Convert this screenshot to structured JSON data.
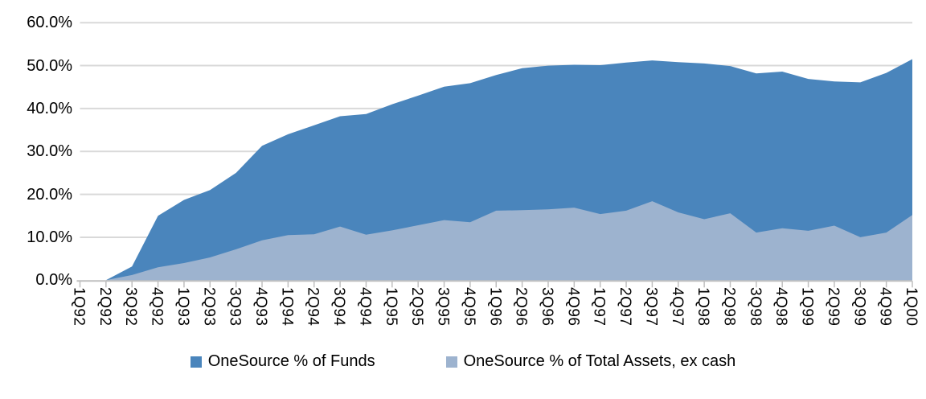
{
  "chart_data": {
    "type": "area",
    "title": "",
    "xlabel": "",
    "ylabel": "",
    "ylim": [
      0,
      60
    ],
    "grid": true,
    "legend_position": "bottom",
    "ytick_labels": [
      "0.0%",
      "10.0%",
      "20.0%",
      "30.0%",
      "40.0%",
      "50.0%",
      "60.0%"
    ],
    "categories": [
      "1Q92",
      "2Q92",
      "3Q92",
      "4Q92",
      "1Q93",
      "2Q93",
      "3Q93",
      "4Q93",
      "1Q94",
      "2Q94",
      "3Q94",
      "4Q94",
      "1Q95",
      "2Q95",
      "3Q95",
      "4Q95",
      "1Q96",
      "2Q96",
      "3Q96",
      "4Q96",
      "1Q97",
      "2Q97",
      "3Q97",
      "4Q97",
      "1Q98",
      "2Q98",
      "3Q98",
      "4Q98",
      "1Q99",
      "2Q99",
      "3Q99",
      "4Q99",
      "1Q00"
    ],
    "series": [
      {
        "name": "OneSource % of Funds",
        "color": "#4a85bc",
        "values": [
          0,
          0,
          3.2,
          15.0,
          18.7,
          21.0,
          25.0,
          31.3,
          34.0,
          36.1,
          38.2,
          38.7,
          41.0,
          43.0,
          45.1,
          45.9,
          47.8,
          49.4,
          50.0,
          50.2,
          50.1,
          50.7,
          51.2,
          50.8,
          50.5,
          49.9,
          48.2,
          48.6,
          46.9,
          46.3,
          46.1,
          48.3,
          51.5
        ]
      },
      {
        "name": "OneSource % of Total Assets, ex cash",
        "color": "#9db3cf",
        "values": [
          0,
          0,
          1.2,
          3.0,
          4.0,
          5.3,
          7.2,
          9.3,
          10.5,
          10.7,
          12.5,
          10.6,
          11.6,
          12.8,
          14.0,
          13.5,
          16.2,
          16.3,
          16.5,
          16.9,
          15.4,
          16.2,
          18.4,
          15.8,
          14.2,
          15.6,
          11.1,
          12.1,
          11.5,
          12.7,
          10.0,
          11.1,
          15.2
        ]
      }
    ]
  },
  "style_colors": {
    "gridline": "#d9d9d9",
    "axis": "#bfbfbf",
    "background": "#ffffff",
    "text": "#000000"
  }
}
